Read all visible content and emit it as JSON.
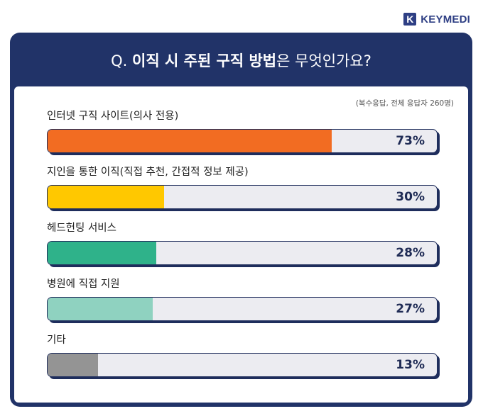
{
  "brand": {
    "mark": "K",
    "name": "KEYMEDI"
  },
  "header": {
    "q_prefix": "Q. ",
    "q_bold": "이직 시 주된 구직 방법",
    "q_rest": "은 무엇인가요?"
  },
  "note": "(복수응답, 전체 응답자 260명)",
  "chart_data": {
    "type": "bar",
    "orientation": "horizontal",
    "categories": [
      "인터넷 구직 사이트(의사 전용)",
      "지인을 통한 이직(직접 추천, 간접적 정보 제공)",
      "헤드헌팅 서비스",
      "병원에 직접 지원",
      "기타"
    ],
    "values": [
      73,
      30,
      28,
      27,
      13
    ],
    "value_labels": [
      "73%",
      "30%",
      "28%",
      "27%",
      "13%"
    ],
    "colors": [
      "#f26c22",
      "#ffc800",
      "#2fb28a",
      "#8fd2c0",
      "#949494"
    ],
    "xlim": [
      0,
      100
    ],
    "title": "이직 시 주된 구직 방법은 무엇인가요?"
  }
}
